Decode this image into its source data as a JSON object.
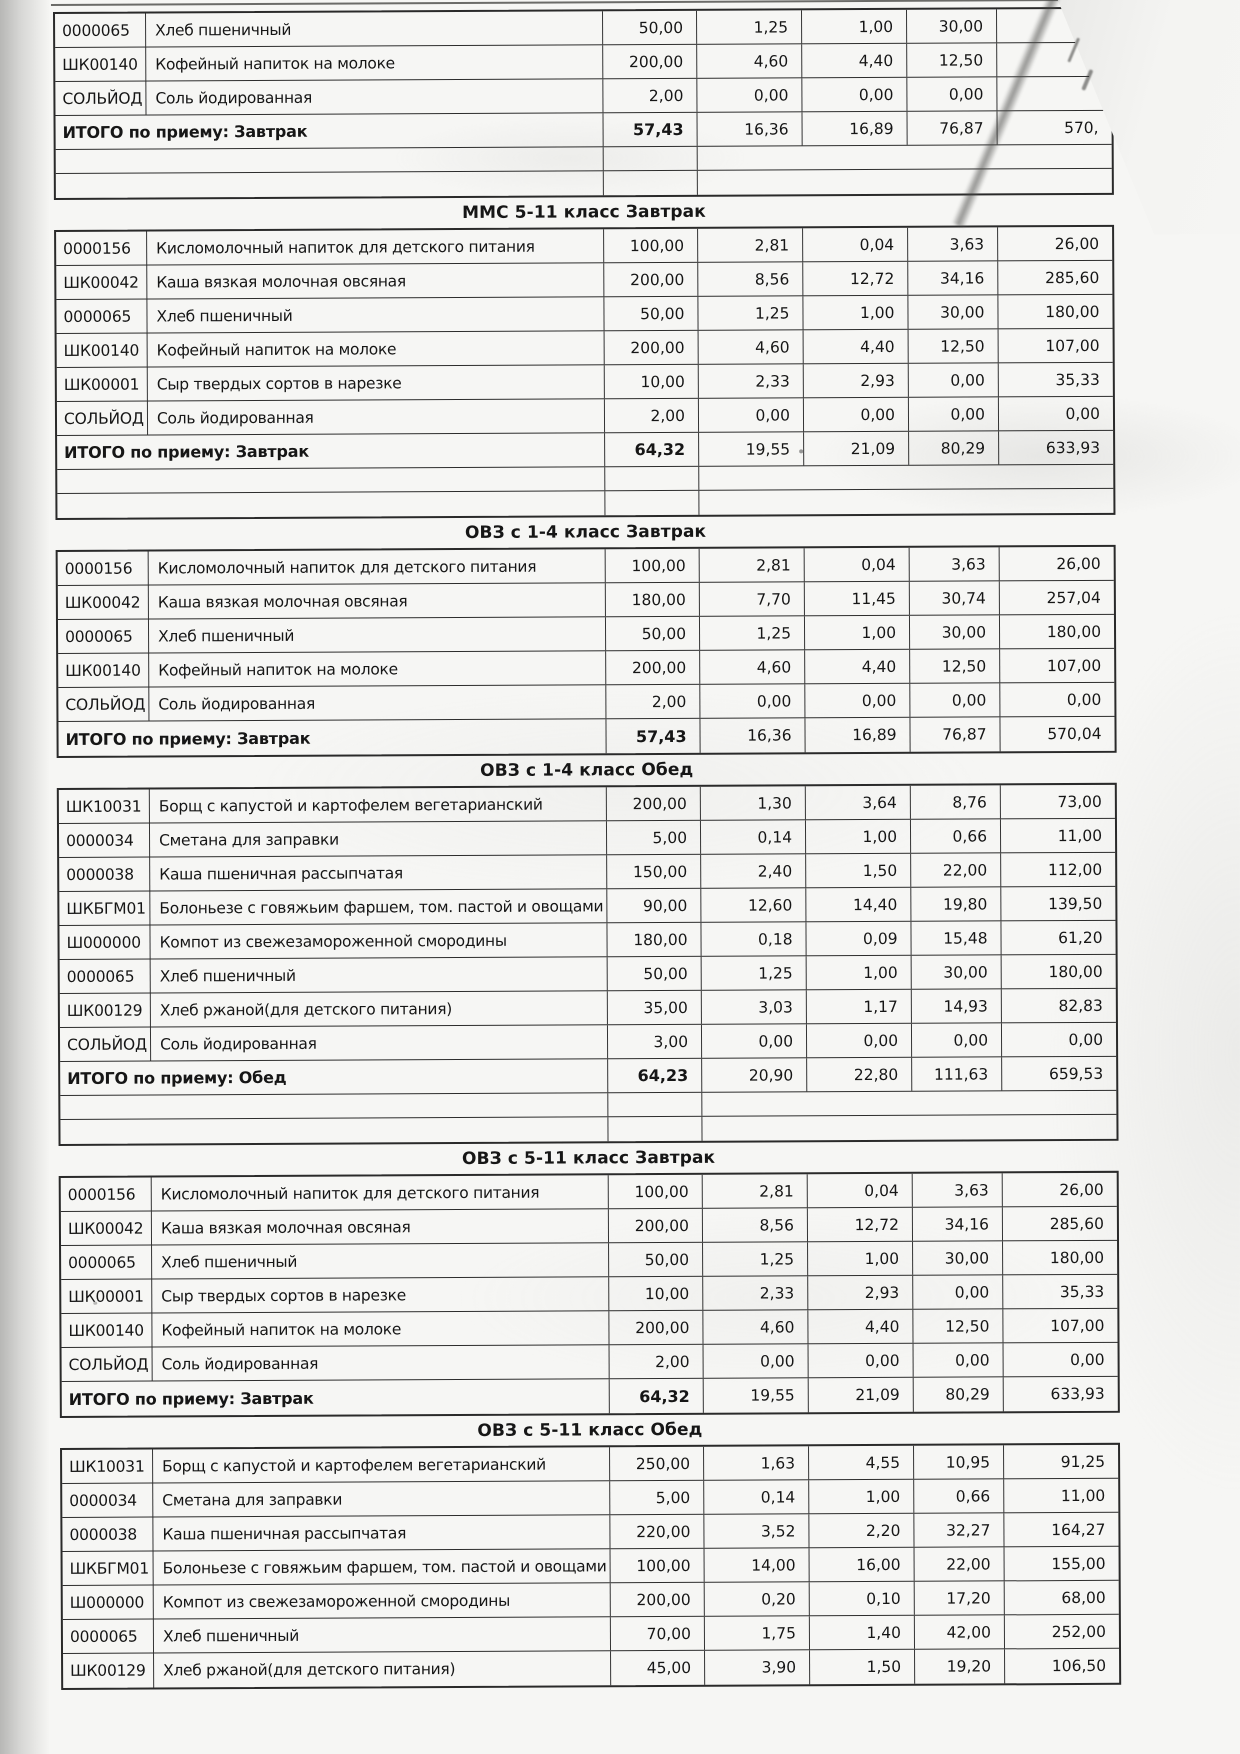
{
  "sections": [
    {
      "title": "",
      "rows": [
        {
          "code": "0000065",
          "name": "Хлеб пшеничный",
          "values": [
            "50,00",
            "1,25",
            "1,00",
            "30,00",
            ""
          ]
        },
        {
          "code": "ШК00140",
          "name": "Кофейный напиток на молоке",
          "values": [
            "200,00",
            "4,60",
            "4,40",
            "12,50",
            ""
          ]
        },
        {
          "code": "СОЛЬЙОД",
          "name": "Соль йодированная",
          "values": [
            "2,00",
            "0,00",
            "0,00",
            "0,00",
            ""
          ]
        }
      ],
      "total": {
        "label": "ИТОГО по приему: Завтрак",
        "values": [
          "57,43",
          "16,36",
          "16,89",
          "76,87",
          "570,"
        ]
      },
      "spacer_after": true
    },
    {
      "title": "ММС 5-11 класс Завтрак",
      "rows": [
        {
          "code": "0000156",
          "name": "Кисломолочный напиток для детского питания",
          "values": [
            "100,00",
            "2,81",
            "0,04",
            "3,63",
            "26,00"
          ]
        },
        {
          "code": "ШК00042",
          "name": "Каша вязкая молочная овсяная",
          "values": [
            "200,00",
            "8,56",
            "12,72",
            "34,16",
            "285,60"
          ]
        },
        {
          "code": "0000065",
          "name": "Хлеб пшеничный",
          "values": [
            "50,00",
            "1,25",
            "1,00",
            "30,00",
            "180,00"
          ]
        },
        {
          "code": "ШК00140",
          "name": "Кофейный напиток на молоке",
          "values": [
            "200,00",
            "4,60",
            "4,40",
            "12,50",
            "107,00"
          ]
        },
        {
          "code": "ШК00001",
          "name": "Сыр твердых сортов в нарезке",
          "values": [
            "10,00",
            "2,33",
            "2,93",
            "0,00",
            "35,33"
          ]
        },
        {
          "code": "СОЛЬЙОД",
          "name": "Соль йодированная",
          "values": [
            "2,00",
            "0,00",
            "0,00",
            "0,00",
            "0,00"
          ]
        }
      ],
      "total": {
        "label": "ИТОГО по приему: Завтрак",
        "values": [
          "64,32",
          "19,55",
          "21,09",
          "80,29",
          "633,93"
        ]
      },
      "spacer_after": true
    },
    {
      "title": "ОВЗ с 1-4 класс Завтрак",
      "rows": [
        {
          "code": "0000156",
          "name": "Кисломолочный напиток для детского питания",
          "values": [
            "100,00",
            "2,81",
            "0,04",
            "3,63",
            "26,00"
          ]
        },
        {
          "code": "ШК00042",
          "name": "Каша вязкая молочная овсяная",
          "values": [
            "180,00",
            "7,70",
            "11,45",
            "30,74",
            "257,04"
          ]
        },
        {
          "code": "0000065",
          "name": "Хлеб пшеничный",
          "values": [
            "50,00",
            "1,25",
            "1,00",
            "30,00",
            "180,00"
          ]
        },
        {
          "code": "ШК00140",
          "name": "Кофейный напиток на молоке",
          "values": [
            "200,00",
            "4,60",
            "4,40",
            "12,50",
            "107,00"
          ]
        },
        {
          "code": "СОЛЬЙОД",
          "name": "Соль йодированная",
          "values": [
            "2,00",
            "0,00",
            "0,00",
            "0,00",
            "0,00"
          ]
        }
      ],
      "total": {
        "label": "ИТОГО по приему: Завтрак",
        "values": [
          "57,43",
          "16,36",
          "16,89",
          "76,87",
          "570,04"
        ]
      },
      "spacer_after": false
    },
    {
      "title": "ОВЗ с 1-4 класс Обед",
      "rows": [
        {
          "code": "ШК10031",
          "name": "Борщ с капустой и картофелем вегетарианский",
          "values": [
            "200,00",
            "1,30",
            "3,64",
            "8,76",
            "73,00"
          ]
        },
        {
          "code": "0000034",
          "name": "Сметана для заправки",
          "values": [
            "5,00",
            "0,14",
            "1,00",
            "0,66",
            "11,00"
          ]
        },
        {
          "code": "0000038",
          "name": "Каша пшеничная рассыпчатая",
          "values": [
            "150,00",
            "2,40",
            "1,50",
            "22,00",
            "112,00"
          ]
        },
        {
          "code": "ШКБГМ01",
          "name": "Болоньезе с говяжьим фаршем, том. пастой и овощами",
          "values": [
            "90,00",
            "12,60",
            "14,40",
            "19,80",
            "139,50"
          ]
        },
        {
          "code": "Ш000000",
          "name": "Компот из свежезамороженной смородины",
          "values": [
            "180,00",
            "0,18",
            "0,09",
            "15,48",
            "61,20"
          ]
        },
        {
          "code": "0000065",
          "name": "Хлеб пшеничный",
          "values": [
            "50,00",
            "1,25",
            "1,00",
            "30,00",
            "180,00"
          ]
        },
        {
          "code": "ШК00129",
          "name": "Хлеб ржаной(для детского питания)",
          "values": [
            "35,00",
            "3,03",
            "1,17",
            "14,93",
            "82,83"
          ]
        },
        {
          "code": "СОЛЬЙОД",
          "name": "Соль йодированная",
          "values": [
            "3,00",
            "0,00",
            "0,00",
            "0,00",
            "0,00"
          ]
        }
      ],
      "total": {
        "label": "ИТОГО по приему: Обед",
        "values": [
          "64,23",
          "20,90",
          "22,80",
          "111,63",
          "659,53"
        ]
      },
      "spacer_after": true
    },
    {
      "title": "ОВЗ с 5-11 класс Завтрак",
      "rows": [
        {
          "code": "0000156",
          "name": "Кисломолочный напиток для детского питания",
          "values": [
            "100,00",
            "2,81",
            "0,04",
            "3,63",
            "26,00"
          ]
        },
        {
          "code": "ШК00042",
          "name": "Каша вязкая молочная овсяная",
          "values": [
            "200,00",
            "8,56",
            "12,72",
            "34,16",
            "285,60"
          ]
        },
        {
          "code": "0000065",
          "name": "Хлеб пшеничный",
          "values": [
            "50,00",
            "1,25",
            "1,00",
            "30,00",
            "180,00"
          ]
        },
        {
          "code": "ШК00001",
          "name": "Сыр твердых сортов в нарезке",
          "values": [
            "10,00",
            "2,33",
            "2,93",
            "0,00",
            "35,33"
          ]
        },
        {
          "code": "ШК00140",
          "name": "Кофейный напиток на молоке",
          "values": [
            "200,00",
            "4,60",
            "4,40",
            "12,50",
            "107,00"
          ]
        },
        {
          "code": "СОЛЬЙОД",
          "name": "Соль йодированная",
          "values": [
            "2,00",
            "0,00",
            "0,00",
            "0,00",
            "0,00"
          ]
        }
      ],
      "total": {
        "label": "ИТОГО по приему: Завтрак",
        "values": [
          "64,32",
          "19,55",
          "21,09",
          "80,29",
          "633,93"
        ]
      },
      "spacer_after": false
    },
    {
      "title": "ОВЗ с 5-11 класс Обед",
      "rows": [
        {
          "code": "ШК10031",
          "name": "Борщ с капустой и картофелем вегетарианский",
          "values": [
            "250,00",
            "1,63",
            "4,55",
            "10,95",
            "91,25"
          ]
        },
        {
          "code": "0000034",
          "name": "Сметана для заправки",
          "values": [
            "5,00",
            "0,14",
            "1,00",
            "0,66",
            "11,00"
          ]
        },
        {
          "code": "0000038",
          "name": "Каша пшеничная рассыпчатая",
          "values": [
            "220,00",
            "3,52",
            "2,20",
            "32,27",
            "164,27"
          ]
        },
        {
          "code": "ШКБГМ01",
          "name": "Болоньезе с говяжьим фаршем, том. пастой и овощами",
          "values": [
            "100,00",
            "14,00",
            "16,00",
            "22,00",
            "155,00"
          ]
        },
        {
          "code": "Ш000000",
          "name": "Компот из свежезамороженной смородины",
          "values": [
            "200,00",
            "0,20",
            "0,10",
            "17,20",
            "68,00"
          ]
        },
        {
          "code": "0000065",
          "name": "Хлеб пшеничный",
          "values": [
            "70,00",
            "1,75",
            "1,40",
            "42,00",
            "252,00"
          ]
        },
        {
          "code": "ШК00129",
          "name": "Хлеб ржаной(для детского питания)",
          "values": [
            "45,00",
            "3,90",
            "1,50",
            "19,20",
            "106,50"
          ]
        }
      ],
      "total": null,
      "spacer_after": false
    }
  ]
}
